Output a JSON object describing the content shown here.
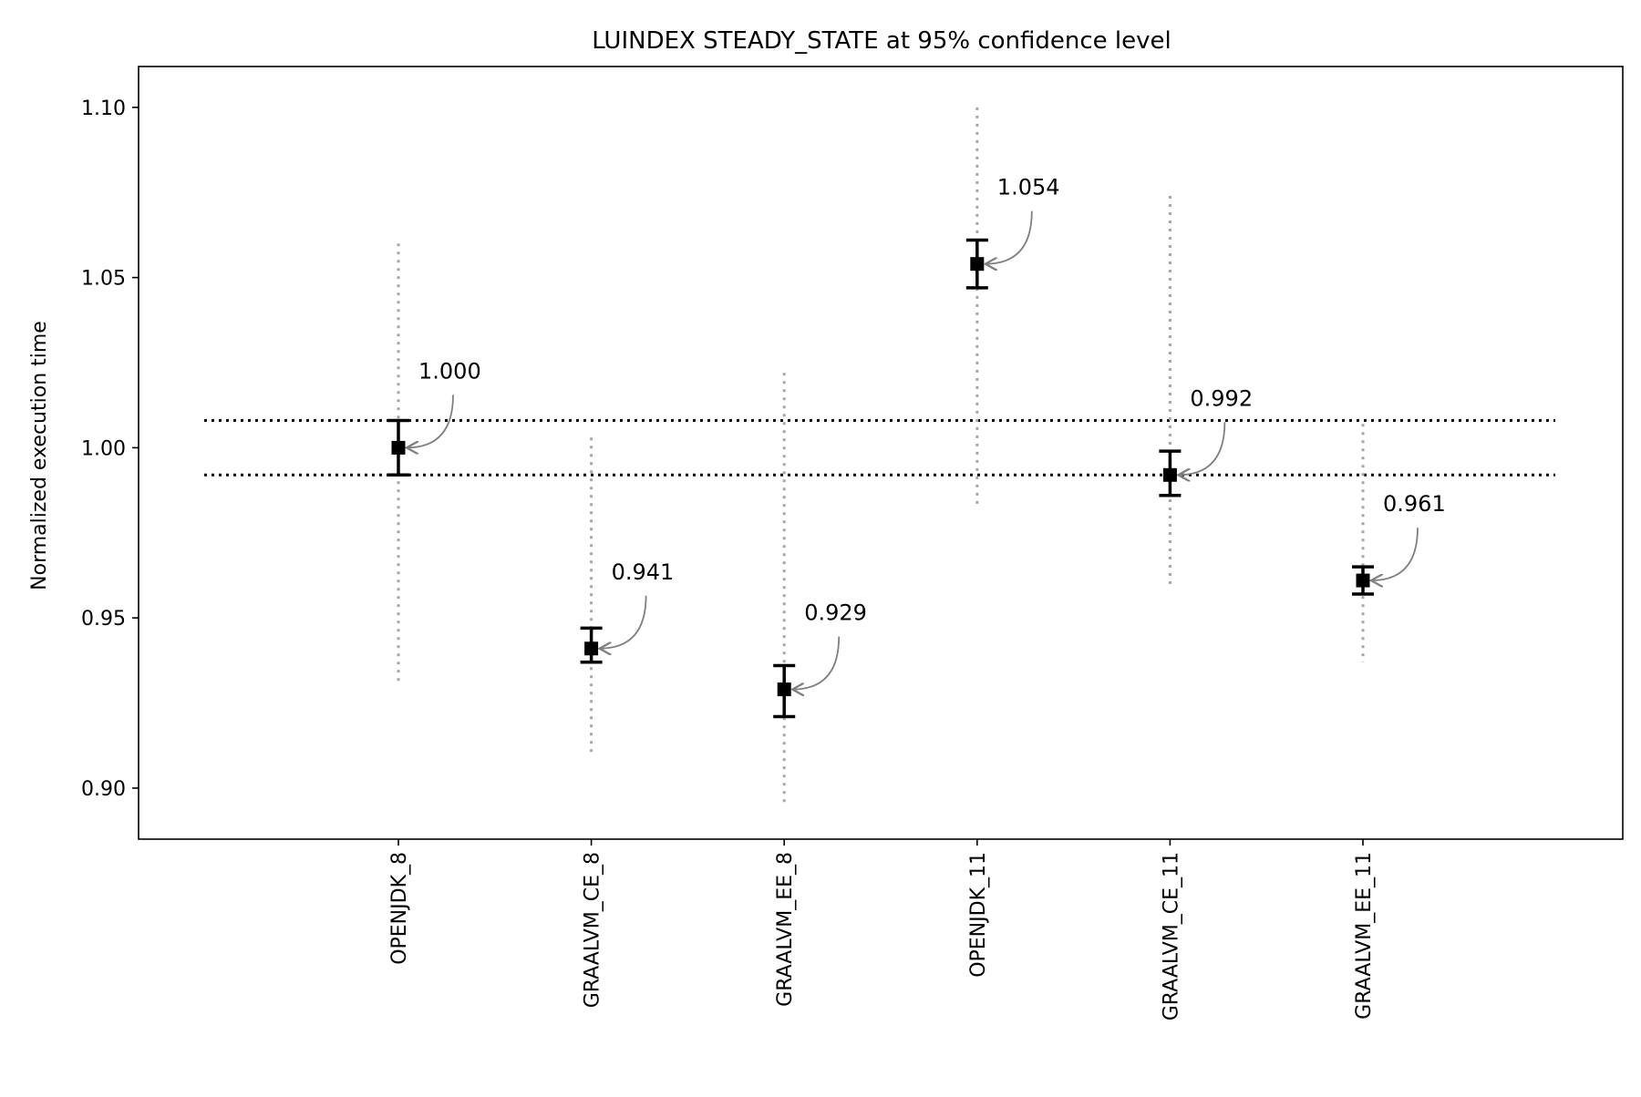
{
  "chart_data": {
    "type": "scatter",
    "title": "LUINDEX STEADY_STATE at 95% confidence level",
    "xlabel": "",
    "ylabel": "Normalized execution time",
    "ylim": [
      0.885,
      1.112
    ],
    "yticks": [
      0.9,
      0.95,
      1.0,
      1.05,
      1.1
    ],
    "ytick_labels": [
      "0.90",
      "0.95",
      "1.00",
      "1.05",
      "1.10"
    ],
    "grid": false,
    "categories": [
      "OPENJDK_8",
      "GRAALVM_CE_8",
      "GRAALVM_EE_8",
      "OPENJDK_11",
      "GRAALVM_CE_11",
      "GRAALVM_EE_11"
    ],
    "points": [
      {
        "category": "OPENJDK_8",
        "value": 1.0,
        "label": "1.000",
        "ci_low": 0.992,
        "ci_high": 1.008,
        "range_low": 0.931,
        "range_high": 1.06
      },
      {
        "category": "GRAALVM_CE_8",
        "value": 0.941,
        "label": "0.941",
        "ci_low": 0.937,
        "ci_high": 0.947,
        "range_low": 0.91,
        "range_high": 1.003
      },
      {
        "category": "GRAALVM_EE_8",
        "value": 0.929,
        "label": "0.929",
        "ci_low": 0.921,
        "ci_high": 0.936,
        "range_low": 0.895,
        "range_high": 1.022
      },
      {
        "category": "OPENJDK_11",
        "value": 1.054,
        "label": "1.054",
        "ci_low": 1.047,
        "ci_high": 1.061,
        "range_low": 0.983,
        "range_high": 1.1
      },
      {
        "category": "GRAALVM_CE_11",
        "value": 0.992,
        "label": "0.992",
        "ci_low": 0.986,
        "ci_high": 0.999,
        "range_low": 0.96,
        "range_high": 1.074
      },
      {
        "category": "GRAALVM_EE_11",
        "value": 0.961,
        "label": "0.961",
        "ci_low": 0.957,
        "ci_high": 0.965,
        "range_low": 0.937,
        "range_high": 1.007
      }
    ],
    "reference_lines": [
      1.008,
      0.992
    ],
    "colors": {
      "marker": "#000000",
      "error_bar": "#000000",
      "range_line": "#a6a6a6",
      "reference_line": "#000000",
      "annotation_arrow": "#808080"
    }
  }
}
